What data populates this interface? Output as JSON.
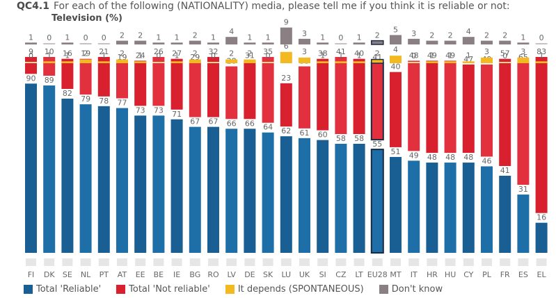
{
  "header": {
    "question_code": "QC4.1",
    "question_text": "For each of the following (NATIONALITY) media, please tell me if you think it is reliable or not:",
    "subtitle": "Television (%)"
  },
  "colors": {
    "reliable": "#1a5f94",
    "reliable_alt": "#1e6fa8",
    "not_reliable": "#d9202e",
    "not_reliable_alt": "#e3303f",
    "depends": "#f2b920",
    "dont_know": "#8a7f82",
    "eu_outline": "#1b2a44"
  },
  "chart_data": {
    "type": "bar",
    "stacked": true,
    "title": "QC4.1 For each of the following (NATIONALITY) media, please tell me if you think it is reliable or not: Television (%)",
    "xlabel": "",
    "ylabel": "",
    "ylim": [
      0,
      100
    ],
    "legend_position": "bottom",
    "categories": [
      "FI",
      "DK",
      "SE",
      "NL",
      "PT",
      "AT",
      "EE",
      "BE",
      "IE",
      "BG",
      "RO",
      "LV",
      "DE",
      "SK",
      "LU",
      "UK",
      "SI",
      "CZ",
      "LT",
      "EU28",
      "MT",
      "IT",
      "HR",
      "HU",
      "CY",
      "PL",
      "FR",
      "ES",
      "EL"
    ],
    "highlight_category": "EU28",
    "series": [
      {
        "name": "Total 'Reliable'",
        "key": "reliable",
        "values": [
          90,
          89,
          82,
          79,
          78,
          77,
          73,
          73,
          71,
          67,
          67,
          66,
          66,
          64,
          62,
          61,
          60,
          58,
          58,
          55,
          51,
          49,
          48,
          48,
          48,
          46,
          41,
          31,
          16
        ]
      },
      {
        "name": "Total 'Not reliable'",
        "key": "not_reliable",
        "values": [
          9,
          10,
          16,
          19,
          21,
          19,
          24,
          26,
          27,
          29,
          32,
          28,
          31,
          35,
          23,
          33,
          38,
          41,
          40,
          41,
          40,
          48,
          49,
          49,
          47,
          49,
          57,
          65,
          83
        ]
      },
      {
        "name": "It depends (SPONTANEOUS)",
        "key": "depends",
        "values": [
          0,
          1,
          1,
          2,
          1,
          2,
          1,
          0,
          1,
          2,
          0,
          2,
          2,
          0,
          6,
          3,
          1,
          1,
          1,
          2,
          4,
          0,
          1,
          1,
          1,
          3,
          0,
          3,
          1
        ]
      },
      {
        "name": "Don't know",
        "key": "dont_know",
        "values": [
          1,
          0,
          1,
          0,
          0,
          2,
          2,
          1,
          1,
          2,
          1,
          4,
          1,
          1,
          9,
          3,
          1,
          0,
          1,
          2,
          5,
          3,
          2,
          2,
          4,
          2,
          2,
          1,
          0
        ]
      }
    ]
  },
  "legend": [
    {
      "label": "Total 'Reliable'",
      "key": "reliable"
    },
    {
      "label": "Total 'Not reliable'",
      "key": "not_reliable"
    },
    {
      "label": "It depends (SPONTANEOUS)",
      "key": "depends"
    },
    {
      "label": "Don't know",
      "key": "dont_know"
    }
  ]
}
